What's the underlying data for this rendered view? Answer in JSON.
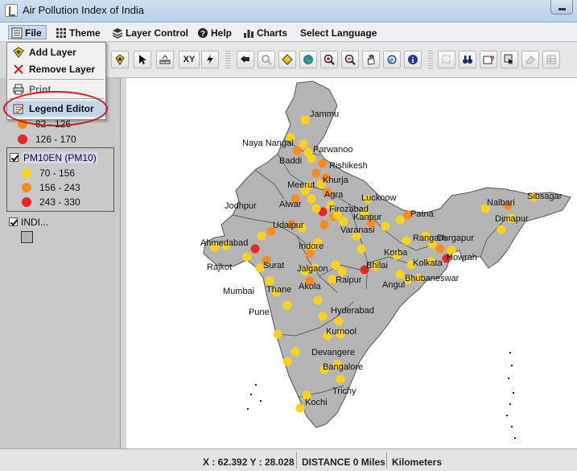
{
  "window": {
    "title": "Air Pollution Index of India"
  },
  "menubar": {
    "items": [
      "File",
      "Theme",
      "Layer Control",
      "Help",
      "Charts",
      "Select Language"
    ]
  },
  "file_menu": {
    "items": [
      "Add Layer",
      "Remove Layer",
      "Print",
      "Legend Editor"
    ]
  },
  "toolbar": {
    "xy_label": "XY"
  },
  "legend": {
    "partial_ranges": [
      "82 - 126",
      "126 - 170"
    ],
    "pm10_title": "PM10EN (PM10)",
    "pm10_ranges": [
      "70 - 156",
      "156 - 243",
      "243 - 330"
    ],
    "india_layer": "INDI..."
  },
  "colors": {
    "low": "#ffd21a",
    "mid": "#ff8a1a",
    "high": "#ee2424",
    "land": "#b4b4b4"
  },
  "map": {
    "cities": [
      "Jammu",
      "Naya Nangal",
      "Parwanoo",
      "Baddi",
      "Rishikesh",
      "Khurja",
      "Meerut",
      "Agra",
      "Alwar",
      "Firozabad",
      "Lucknow",
      "Jodhpur",
      "Udaipur",
      "Kanpur",
      "Varanasi",
      "Patna",
      "Nalbari",
      "Sibsagar",
      "Dimapur",
      "Ahmedabad",
      "Indore",
      "Rangarh",
      "Durgapur",
      "Rajkot",
      "Surat",
      "Korba",
      "Howrah",
      "Kolkata",
      "Jalgaon",
      "Bhilai",
      "Mumbai",
      "Thane",
      "Akola",
      "Raipur",
      "Angul",
      "Bhubaneswar",
      "Pune",
      "Hyderabad",
      "Kurnool",
      "Devangere",
      "Bangalore",
      "Trichy",
      "Kochi"
    ]
  },
  "status": {
    "coords": "X : 62.392 Y : 28.028",
    "distance": "DISTANCE 0 Miles",
    "units": "Kilometers"
  }
}
